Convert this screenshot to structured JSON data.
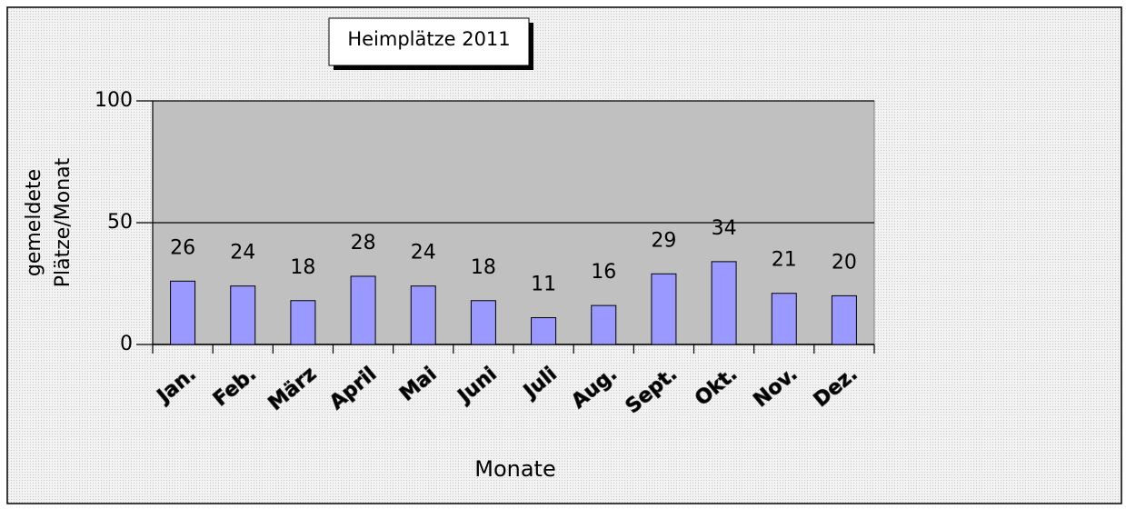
{
  "chart_data": {
    "type": "bar",
    "title": "Heimplätze 2011",
    "xlabel": "Monate",
    "ylabel": [
      "gemeldete",
      "Plätze/Monat"
    ],
    "categories": [
      "Jan.",
      "Feb.",
      "März",
      "April",
      "Mai",
      "Juni",
      "Juli",
      "Aug.",
      "Sept.",
      "Okt.",
      "Nov.",
      "Dez."
    ],
    "values": [
      26,
      24,
      18,
      28,
      24,
      18,
      11,
      16,
      29,
      34,
      21,
      20
    ],
    "color": "#9999ff",
    "ylim": [
      0,
      100
    ],
    "yticks": [
      0,
      50,
      100
    ],
    "grid": true
  }
}
